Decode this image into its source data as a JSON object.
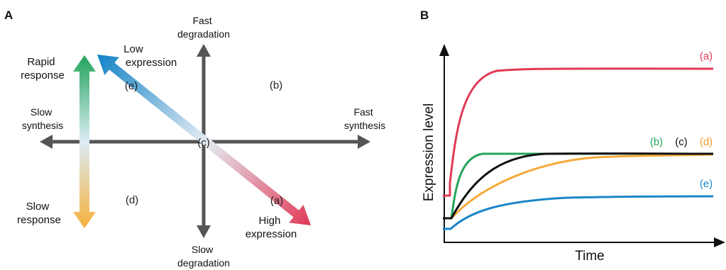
{
  "panel_a": {
    "letter": "A",
    "axis_top": [
      "Fast",
      "degradation"
    ],
    "axis_bottom": [
      "Slow",
      "degradation"
    ],
    "axis_left": [
      "Slow",
      "synthesis"
    ],
    "axis_right": [
      "Fast",
      "synthesis"
    ],
    "rapid_response": [
      "Rapid",
      "response"
    ],
    "slow_response": [
      "Slow",
      "response"
    ],
    "low_expression": [
      "Low",
      "expression"
    ],
    "high_expression": [
      "High",
      "expression"
    ],
    "region_b": "(b)",
    "region_c": "(c)",
    "region_d": "(d)",
    "point_e": "(e)",
    "point_a": "(a)"
  },
  "panel_b": {
    "letter": "B",
    "ylabel": "Expression level",
    "xlabel": "Time",
    "curves": [
      {
        "label": "(a)",
        "color": "#e03a57"
      },
      {
        "label": "(b)",
        "color": "#22a45a"
      },
      {
        "label": "(c)",
        "color": "#111111"
      },
      {
        "label": "(d)",
        "color": "#f5a93a"
      },
      {
        "label": "(e)",
        "color": "#1a86c8"
      }
    ]
  },
  "colors": {
    "axis": "#555555",
    "rapid": "#22a45a",
    "slow": "#f29a2e",
    "low": "#1a86c8",
    "high": "#e03a57"
  }
}
